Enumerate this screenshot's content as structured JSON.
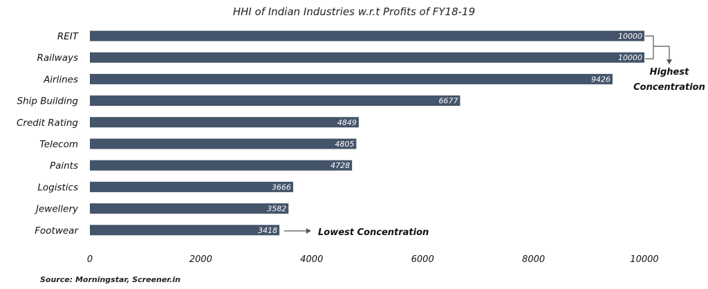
{
  "chart_data": {
    "type": "bar",
    "orientation": "horizontal",
    "title": "HHI of Indian Industries w.r.t Profits of FY18-19",
    "categories": [
      "REIT",
      "Railways",
      "Airlines",
      "Ship Building",
      "Credit Rating",
      "Telecom",
      "Paints",
      "Logistics",
      "Jewellery",
      "Footwear"
    ],
    "values": [
      10000,
      10000,
      9426,
      6677,
      4849,
      4805,
      4728,
      3666,
      3582,
      3418
    ],
    "xlim": [
      0,
      10000
    ],
    "xticks": [
      "0",
      "2000",
      "4000",
      "6000",
      "8000",
      "10000"
    ],
    "grid": false,
    "bar_color": "#44546a",
    "annotations": {
      "highest": [
        "Highest",
        "Concentration"
      ],
      "lowest": "Lowest Concentration"
    },
    "source": "Source: Morningstar, Screener.in"
  }
}
